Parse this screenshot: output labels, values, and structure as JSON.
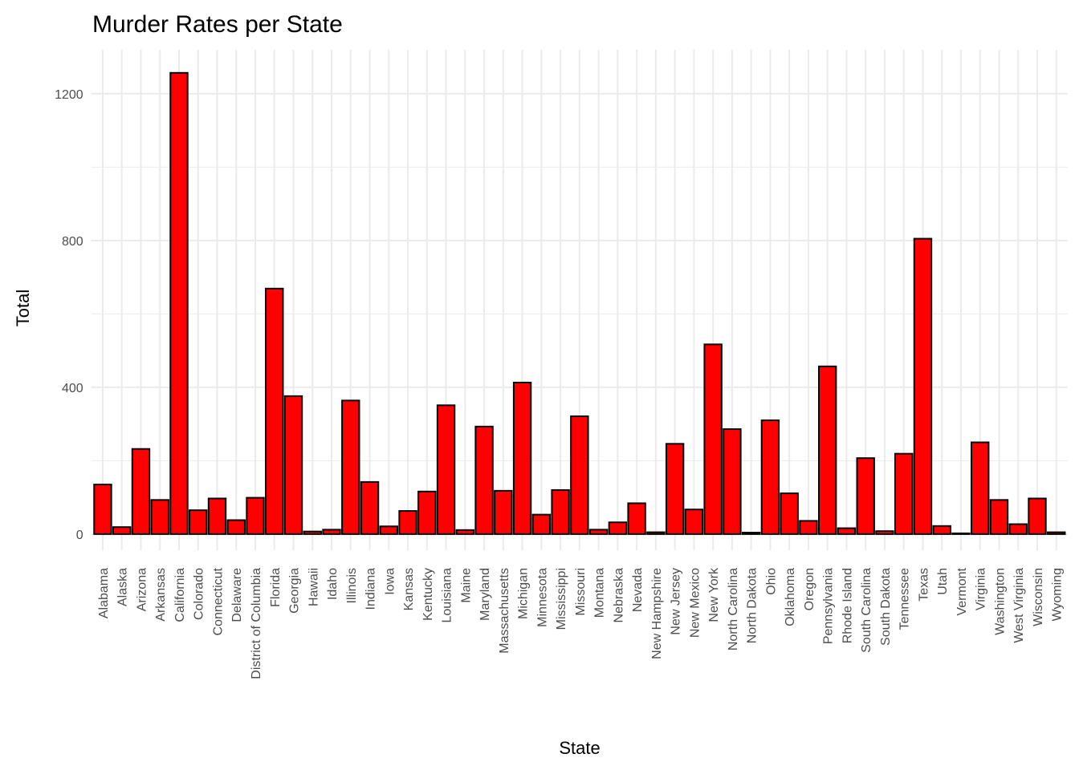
{
  "chart_data": {
    "type": "bar",
    "title": "Murder Rates per State",
    "x_label": "State",
    "y_label": "Total",
    "categories": [
      "Alabama",
      "Alaska",
      "Arizona",
      "Arkansas",
      "California",
      "Colorado",
      "Connecticut",
      "Delaware",
      "District of Columbia",
      "Florida",
      "Georgia",
      "Hawaii",
      "Idaho",
      "Illinois",
      "Indiana",
      "Iowa",
      "Kansas",
      "Kentucky",
      "Louisiana",
      "Maine",
      "Maryland",
      "Massachusetts",
      "Michigan",
      "Minnesota",
      "Mississippi",
      "Missouri",
      "Montana",
      "Nebraska",
      "Nevada",
      "New Hampshire",
      "New Jersey",
      "New Mexico",
      "New York",
      "North Carolina",
      "North Dakota",
      "Ohio",
      "Oklahoma",
      "Oregon",
      "Pennsylvania",
      "Rhode Island",
      "South Carolina",
      "South Dakota",
      "Tennessee",
      "Texas",
      "Utah",
      "Vermont",
      "Virginia",
      "Washington",
      "West Virginia",
      "Wisconsin",
      "Wyoming"
    ],
    "values": [
      135,
      19,
      232,
      93,
      1257,
      65,
      97,
      38,
      99,
      669,
      376,
      7,
      12,
      364,
      142,
      21,
      63,
      116,
      351,
      11,
      293,
      118,
      413,
      53,
      120,
      321,
      12,
      32,
      84,
      5,
      246,
      67,
      517,
      286,
      4,
      310,
      111,
      36,
      457,
      16,
      207,
      8,
      219,
      805,
      22,
      2,
      250,
      93,
      27,
      97,
      5
    ],
    "color": "#ff0000",
    "edge_color": "#000000",
    "ylim": [
      -44,
      1320
    ],
    "yticks": [
      0,
      400,
      800,
      1200
    ],
    "y_minor_grid": [
      200,
      600,
      1000
    ],
    "grid": true
  }
}
